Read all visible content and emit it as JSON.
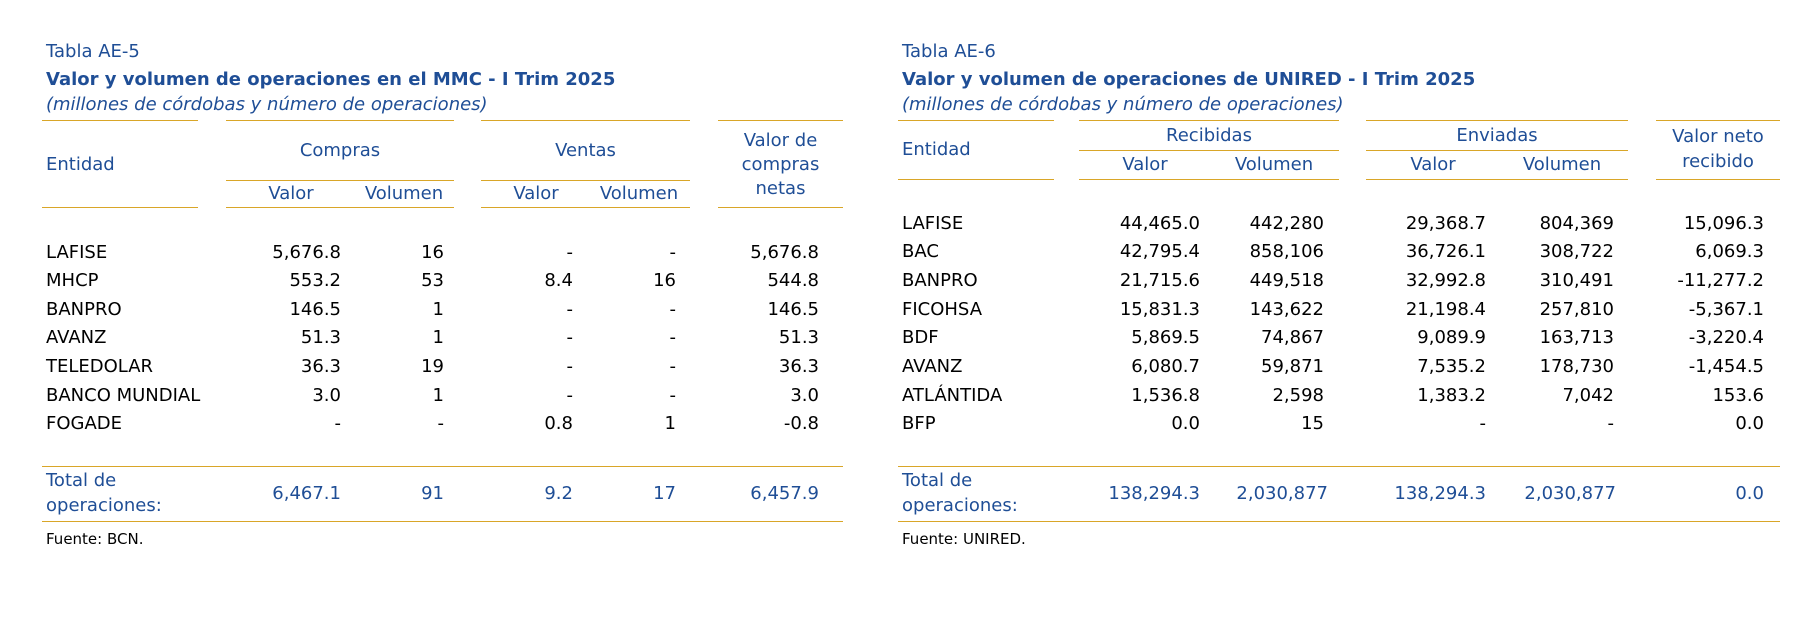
{
  "ae5": {
    "code": "Tabla AE-5",
    "title": "Valor y volumen de operaciones en el MMC - I Trim 2025",
    "subtitle": "(millones de córdobas y número de operaciones)",
    "headers": {
      "entidad": "Entidad",
      "compras": "Compras",
      "ventas": "Ventas",
      "valor": "Valor",
      "volumen": "Volumen",
      "netas_1": "Valor de",
      "netas_2": "compras",
      "netas_3": "netas"
    },
    "rows": [
      {
        "entity": "LAFISE",
        "cv": "5,676.8",
        "cvol": "16",
        "vv": "-",
        "vvol": "-",
        "net": "5,676.8"
      },
      {
        "entity": "MHCP",
        "cv": "553.2",
        "cvol": "53",
        "vv": "8.4",
        "vvol": "16",
        "net": "544.8"
      },
      {
        "entity": "BANPRO",
        "cv": "146.5",
        "cvol": "1",
        "vv": "-",
        "vvol": "-",
        "net": "146.5"
      },
      {
        "entity": "AVANZ",
        "cv": "51.3",
        "cvol": "1",
        "vv": "-",
        "vvol": "-",
        "net": "51.3"
      },
      {
        "entity": "TELEDOLAR",
        "cv": "36.3",
        "cvol": "19",
        "vv": "-",
        "vvol": "-",
        "net": "36.3"
      },
      {
        "entity": "BANCO MUNDIAL",
        "cv": "3.0",
        "cvol": "1",
        "vv": "-",
        "vvol": "-",
        "net": "3.0"
      },
      {
        "entity": "FOGADE",
        "cv": "-",
        "cvol": "-",
        "vv": "0.8",
        "vvol": "1",
        "net": "-0.8"
      }
    ],
    "total": {
      "label_1": "Total de",
      "label_2": "operaciones:",
      "cv": "6,467.1",
      "cvol": "91",
      "vv": "9.2",
      "vvol": "17",
      "net": "6,457.9"
    },
    "source": "Fuente: BCN."
  },
  "ae6": {
    "code": "Tabla AE-6",
    "title": "Valor y volumen de operaciones de UNIRED - I Trim 2025",
    "subtitle": "(millones de córdobas y número de operaciones)",
    "headers": {
      "entidad": "Entidad",
      "recibidas": "Recibidas",
      "enviadas": "Enviadas",
      "valor": "Valor",
      "volumen": "Volumen",
      "neto_1": "Valor neto",
      "neto_2": "recibido"
    },
    "rows": [
      {
        "entity": "LAFISE",
        "rv": "44,465.0",
        "rvol": "442,280",
        "ev": "29,368.7",
        "evol": "804,369",
        "net": "15,096.3"
      },
      {
        "entity": "BAC",
        "rv": "42,795.4",
        "rvol": "858,106",
        "ev": "36,726.1",
        "evol": "308,722",
        "net": "6,069.3"
      },
      {
        "entity": "BANPRO",
        "rv": "21,715.6",
        "rvol": "449,518",
        "ev": "32,992.8",
        "evol": "310,491",
        "net": "-11,277.2"
      },
      {
        "entity": "FICOHSA",
        "rv": "15,831.3",
        "rvol": "143,622",
        "ev": "21,198.4",
        "evol": "257,810",
        "net": "-5,367.1"
      },
      {
        "entity": "BDF",
        "rv": "5,869.5",
        "rvol": "74,867",
        "ev": "9,089.9",
        "evol": "163,713",
        "net": "-3,220.4"
      },
      {
        "entity": "AVANZ",
        "rv": "6,080.7",
        "rvol": "59,871",
        "ev": "7,535.2",
        "evol": "178,730",
        "net": "-1,454.5"
      },
      {
        "entity": "ATLÁNTIDA",
        "rv": "1,536.8",
        "rvol": "2,598",
        "ev": "1,383.2",
        "evol": "7,042",
        "net": "153.6"
      },
      {
        "entity": "BFP",
        "rv": "0.0",
        "rvol": "15",
        "ev": "-",
        "evol": "-",
        "net": "0.0"
      }
    ],
    "total": {
      "label_1": "Total de",
      "label_2": "operaciones:",
      "rv": "138,294.3",
      "rvol": "2,030,877",
      "ev": "138,294.3",
      "evol": "2,030,877",
      "net": "0.0"
    },
    "source": "Fuente: UNIRED."
  }
}
